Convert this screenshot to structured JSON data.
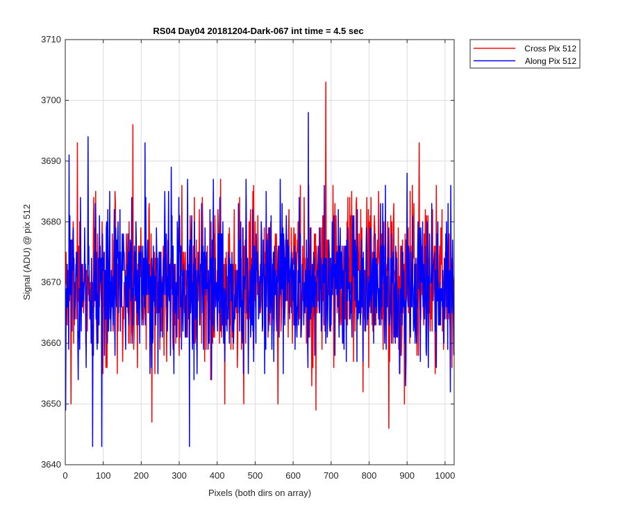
{
  "chart_data": {
    "type": "line",
    "title": "RS04 Day04 20181204-Dark-067 int time = 4.5 sec",
    "xlabel": "Pixels (both dirs on array)",
    "ylabel": "Signal (ADU) @ pix 512",
    "xlim": [
      0,
      1024
    ],
    "ylim": [
      3640,
      3710
    ],
    "xticks": [
      0,
      100,
      200,
      300,
      400,
      500,
      600,
      700,
      800,
      900,
      1000
    ],
    "yticks": [
      3640,
      3650,
      3660,
      3670,
      3680,
      3690,
      3700,
      3710
    ],
    "grid": true,
    "legend_position": "outside-top-right",
    "series": [
      {
        "name": "Cross Pix 512",
        "color": "#ff0000",
        "noise": {
          "n": 1024,
          "mean": 3670,
          "std": 6.2,
          "seed": 7
        },
        "spikes": [
          {
            "x": 15,
            "y": 3650
          },
          {
            "x": 32,
            "y": 3693
          },
          {
            "x": 80,
            "y": 3685
          },
          {
            "x": 178,
            "y": 3696
          },
          {
            "x": 228,
            "y": 3647
          },
          {
            "x": 420,
            "y": 3650
          },
          {
            "x": 470,
            "y": 3650
          },
          {
            "x": 560,
            "y": 3650
          },
          {
            "x": 660,
            "y": 3649
          },
          {
            "x": 686,
            "y": 3703
          },
          {
            "x": 852,
            "y": 3646
          },
          {
            "x": 932,
            "y": 3693
          }
        ]
      },
      {
        "name": "Along Pix 512",
        "color": "#0000ff",
        "noise": {
          "n": 1024,
          "mean": 3670,
          "std": 6.5,
          "seed": 23
        },
        "spikes": [
          {
            "x": 1,
            "y": 3649
          },
          {
            "x": 10,
            "y": 3691
          },
          {
            "x": 60,
            "y": 3694
          },
          {
            "x": 72,
            "y": 3643
          },
          {
            "x": 96,
            "y": 3643
          },
          {
            "x": 210,
            "y": 3693
          },
          {
            "x": 327,
            "y": 3643
          },
          {
            "x": 640,
            "y": 3698
          },
          {
            "x": 1015,
            "y": 3686
          }
        ]
      }
    ]
  }
}
